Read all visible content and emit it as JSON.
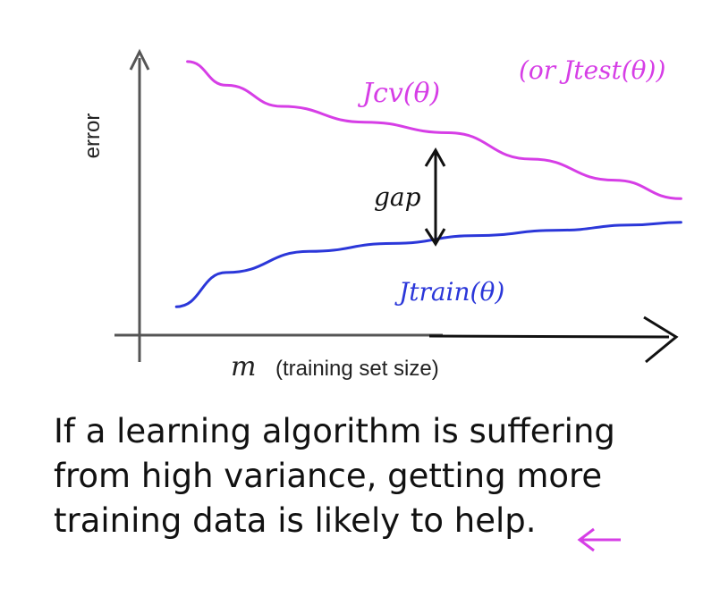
{
  "chart_data": {
    "type": "line",
    "ylabel": "error",
    "xlabel_symbol": "m",
    "xlabel_text": "(training set size)",
    "x_range": [
      0,
      1
    ],
    "y_range": [
      0,
      1
    ],
    "grid": false,
    "series": [
      {
        "name": "Jcv(θ)",
        "color": "#d63ee6",
        "x": [
          0.08,
          0.15,
          0.25,
          0.4,
          0.55,
          0.7,
          0.85,
          0.97
        ],
        "y": [
          0.97,
          0.88,
          0.8,
          0.74,
          0.7,
          0.6,
          0.52,
          0.45
        ]
      },
      {
        "name": "Jtrain(θ)",
        "color": "#2b37d9",
        "x": [
          0.06,
          0.15,
          0.3,
          0.45,
          0.6,
          0.75,
          0.88,
          0.97
        ],
        "y": [
          0.04,
          0.17,
          0.25,
          0.28,
          0.31,
          0.33,
          0.35,
          0.36
        ]
      }
    ],
    "annotations": {
      "cv_label": "Jcv(θ)",
      "test_label": "(or Jtest(θ))",
      "train_label": "Jtrain(θ)",
      "gap_label": "gap"
    }
  },
  "caption": {
    "lines": [
      "If a learning algorithm is suffering",
      "from high variance, getting more",
      "training data is likely to help."
    ],
    "pointer_color": "#d63ee6"
  }
}
